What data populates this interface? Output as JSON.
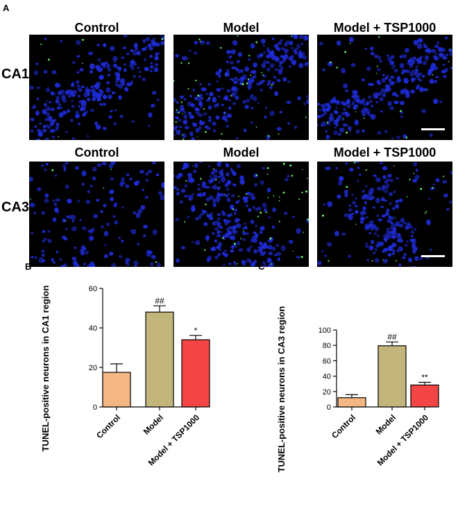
{
  "panel_labels": {
    "a": "A",
    "b": "B",
    "c": "C"
  },
  "micrographs": {
    "row1": {
      "label": "CA1",
      "titles": [
        "Control",
        "Model",
        "Model + TSP1000"
      ]
    },
    "row2": {
      "label": "CA3",
      "titles": [
        "Control",
        "Model",
        "Model + TSP1000"
      ]
    },
    "colors": {
      "background": "#000000",
      "nuclei": "#1e2bd6",
      "tunel": "#6dff6d",
      "scale_bar": "#ffffff"
    }
  },
  "chart_data": [
    {
      "type": "bar",
      "panel": "B",
      "categories": [
        "Control",
        "Model",
        "Model + TSP1000"
      ],
      "values": [
        17.5,
        48,
        34
      ],
      "errors": [
        4.3,
        3.2,
        2.2
      ],
      "significance": [
        "",
        "##",
        "*"
      ],
      "colors": [
        "#f4b784",
        "#c2b57c",
        "#f44545"
      ],
      "ylabel": "TUNEL-positive neurons in CA1 region",
      "ylim": [
        0,
        60
      ],
      "yticks": [
        0,
        20,
        40,
        60
      ],
      "grid": false
    },
    {
      "type": "bar",
      "panel": "C",
      "categories": [
        "Control",
        "Model",
        "Model + TSP1000"
      ],
      "values": [
        12,
        79.5,
        28.5
      ],
      "errors": [
        4,
        5,
        3.5
      ],
      "significance": [
        "",
        "##",
        "**"
      ],
      "colors": [
        "#f4b784",
        "#c2b57c",
        "#f44545"
      ],
      "ylabel": "TUNEL-positive neurons in CA3 region",
      "ylim": [
        0,
        100
      ],
      "yticks": [
        0,
        20,
        40,
        60,
        80,
        100
      ],
      "grid": false
    }
  ]
}
